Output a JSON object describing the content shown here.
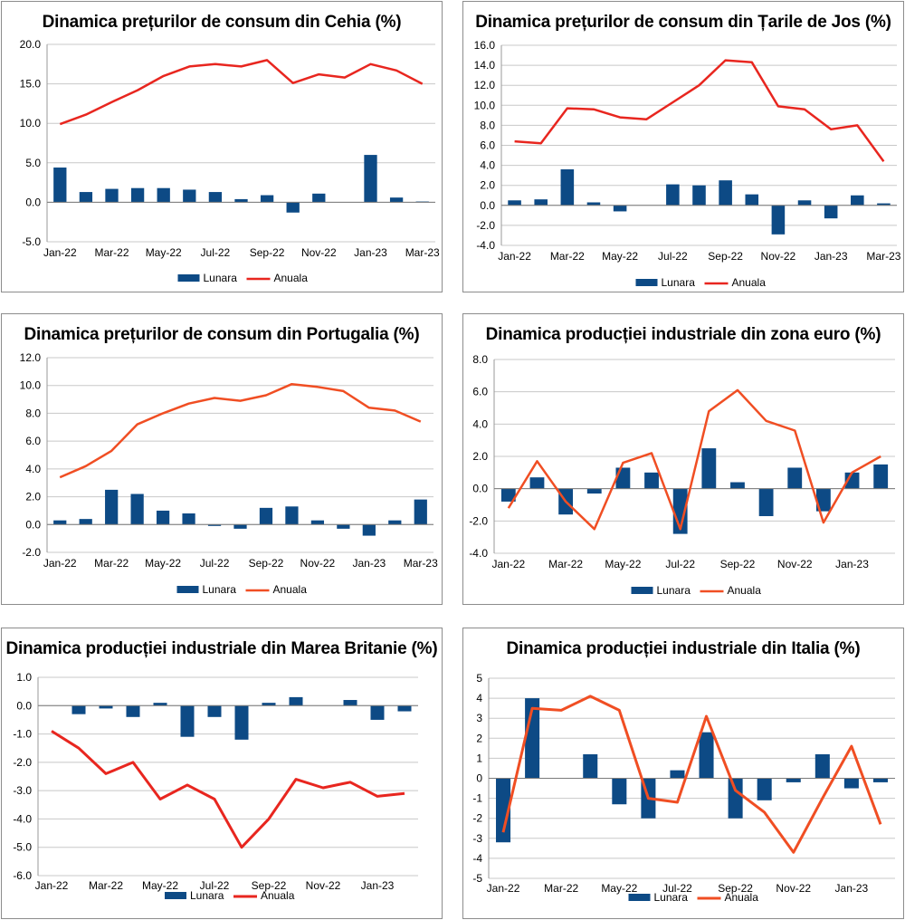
{
  "chart_data": [
    {
      "type": "bar+line",
      "title": "Dinamica prețurilor de consum din Cehia (%)",
      "categories": [
        "Jan-22",
        "Feb-22",
        "Mar-22",
        "Apr-22",
        "May-22",
        "Jun-22",
        "Jul-22",
        "Aug-22",
        "Sep-22",
        "Oct-22",
        "Nov-22",
        "Dec-22",
        "Jan-23",
        "Feb-23",
        "Mar-23"
      ],
      "x_tick_labels": [
        "Jan-22",
        "Mar-22",
        "May-22",
        "Jul-22",
        "Sep-22",
        "Nov-22",
        "Jan-23",
        "Mar-23"
      ],
      "y_ticks": [
        "20.0",
        "15.0",
        "10.0",
        "5.0",
        "0.0",
        "-5.0"
      ],
      "ylim": [
        -5,
        20
      ],
      "series": [
        {
          "name": "Lunara",
          "kind": "bar",
          "values": [
            4.4,
            1.3,
            1.7,
            1.8,
            1.8,
            1.6,
            1.3,
            0.4,
            0.9,
            -1.3,
            1.1,
            0.0,
            6.0,
            0.6,
            0.1
          ]
        },
        {
          "name": "Anuala",
          "kind": "line",
          "values": [
            9.9,
            11.1,
            12.7,
            14.2,
            16.0,
            17.2,
            17.5,
            17.2,
            18.0,
            15.1,
            16.2,
            15.8,
            17.5,
            16.7,
            15.0
          ]
        }
      ],
      "colors": {
        "bar": "#0d4a85",
        "line": "#e8261f"
      },
      "legend": [
        "Lunara",
        "Anuala"
      ]
    },
    {
      "type": "bar+line",
      "title": "Dinamica prețurilor de consum din Țarile de Jos (%)",
      "categories": [
        "Jan-22",
        "Feb-22",
        "Mar-22",
        "Apr-22",
        "May-22",
        "Jun-22",
        "Jul-22",
        "Aug-22",
        "Sep-22",
        "Oct-22",
        "Nov-22",
        "Dec-22",
        "Jan-23",
        "Feb-23",
        "Mar-23"
      ],
      "x_tick_labels": [
        "Jan-22",
        "Mar-22",
        "May-22",
        "Jul-22",
        "Sep-22",
        "Nov-22",
        "Jan-23",
        "Mar-23"
      ],
      "y_ticks": [
        "16.0",
        "14.0",
        "12.0",
        "10.0",
        "8.0",
        "6.0",
        "4.0",
        "2.0",
        "0.0",
        "-2.0",
        "-4.0"
      ],
      "ylim": [
        -4,
        16
      ],
      "series": [
        {
          "name": "Lunara",
          "kind": "bar",
          "values": [
            0.5,
            0.6,
            3.6,
            0.3,
            -0.6,
            0.0,
            2.1,
            2.0,
            2.5,
            1.1,
            -2.9,
            0.5,
            -1.3,
            1.0,
            0.2
          ]
        },
        {
          "name": "Anuala",
          "kind": "line",
          "values": [
            6.4,
            6.2,
            9.7,
            9.6,
            8.8,
            8.6,
            10.3,
            12.0,
            14.5,
            14.3,
            9.9,
            9.6,
            7.6,
            8.0,
            4.4
          ]
        }
      ],
      "colors": {
        "bar": "#0d4a85",
        "line": "#e8261f"
      },
      "legend": [
        "Lunara",
        "Anuala"
      ]
    },
    {
      "type": "bar+line",
      "title": "Dinamica prețurilor de consum din Portugalia (%)",
      "categories": [
        "Jan-22",
        "Feb-22",
        "Mar-22",
        "Apr-22",
        "May-22",
        "Jun-22",
        "Jul-22",
        "Aug-22",
        "Sep-22",
        "Oct-22",
        "Nov-22",
        "Dec-22",
        "Jan-23",
        "Feb-23",
        "Mar-23"
      ],
      "x_tick_labels": [
        "Jan-22",
        "Mar-22",
        "May-22",
        "Jul-22",
        "Sep-22",
        "Nov-22",
        "Jan-23",
        "Mar-23"
      ],
      "y_ticks": [
        "12.0",
        "10.0",
        "8.0",
        "6.0",
        "4.0",
        "2.0",
        "0.0",
        "-2.0"
      ],
      "ylim": [
        -2,
        12
      ],
      "series": [
        {
          "name": "Lunara",
          "kind": "bar",
          "values": [
            0.3,
            0.4,
            2.5,
            2.2,
            1.0,
            0.8,
            -0.1,
            -0.3,
            1.2,
            1.3,
            0.3,
            -0.3,
            -0.8,
            0.3,
            1.8
          ]
        },
        {
          "name": "Anuala",
          "kind": "line",
          "values": [
            3.4,
            4.2,
            5.3,
            7.2,
            8.0,
            8.7,
            9.1,
            8.9,
            9.3,
            10.1,
            9.9,
            9.6,
            8.4,
            8.2,
            7.4
          ]
        }
      ],
      "colors": {
        "bar": "#0d4a85",
        "line": "#f04e23"
      },
      "legend": [
        "Lunara",
        "Anuala"
      ]
    },
    {
      "type": "bar+line",
      "title": "Dinamica producției industriale din zona euro (%)",
      "categories": [
        "Jan-22",
        "Feb-22",
        "Mar-22",
        "Apr-22",
        "May-22",
        "Jun-22",
        "Jul-22",
        "Aug-22",
        "Sep-22",
        "Oct-22",
        "Nov-22",
        "Dec-22",
        "Jan-23",
        "Feb-23"
      ],
      "x_tick_labels": [
        "Jan-22",
        "Mar-22",
        "May-22",
        "Jul-22",
        "Sep-22",
        "Nov-22",
        "Jan-23"
      ],
      "y_ticks": [
        "8.0",
        "6.0",
        "4.0",
        "2.0",
        "0.0",
        "-2.0",
        "-4.0"
      ],
      "ylim": [
        -4,
        8
      ],
      "series": [
        {
          "name": "Lunara",
          "kind": "bar",
          "values": [
            -0.8,
            0.7,
            -1.6,
            -0.3,
            1.3,
            1.0,
            -2.8,
            2.5,
            0.4,
            -1.7,
            1.3,
            -1.4,
            1.0,
            1.5
          ]
        },
        {
          "name": "Anuala",
          "kind": "line",
          "values": [
            -1.2,
            1.7,
            -0.8,
            -2.5,
            1.6,
            2.2,
            -2.5,
            4.8,
            6.1,
            4.2,
            3.6,
            -2.1,
            1.0,
            2.0
          ]
        }
      ],
      "colors": {
        "bar": "#0d4a85",
        "line": "#f04e23"
      },
      "legend": [
        "Lunara",
        "Anuala"
      ]
    },
    {
      "type": "bar+line",
      "title": "Dinamica producției industriale din Marea Britanie (%)",
      "categories": [
        "Jan-22",
        "Feb-22",
        "Mar-22",
        "Apr-22",
        "May-22",
        "Jun-22",
        "Jul-22",
        "Aug-22",
        "Sep-22",
        "Oct-22",
        "Nov-22",
        "Dec-22",
        "Jan-23",
        "Feb-23"
      ],
      "x_tick_labels": [
        "Jan-22",
        "Mar-22",
        "May-22",
        "Jul-22",
        "Sep-22",
        "Nov-22",
        "Jan-23"
      ],
      "y_ticks": [
        "1.0",
        "0.0",
        "-1.0",
        "-2.0",
        "-3.0",
        "-4.0",
        "-5.0",
        "-6.0"
      ],
      "ylim": [
        -6,
        1
      ],
      "series": [
        {
          "name": "Lunara",
          "kind": "bar",
          "values": [
            0.0,
            -0.3,
            -0.1,
            -0.4,
            0.1,
            -1.1,
            -0.4,
            -1.2,
            0.1,
            0.3,
            0.0,
            0.2,
            -0.5,
            -0.2
          ]
        },
        {
          "name": "Anuala",
          "kind": "line",
          "values": [
            -0.9,
            -1.5,
            -2.4,
            -2.0,
            -3.3,
            -2.8,
            -3.3,
            -5.0,
            -4.0,
            -2.6,
            -2.9,
            -2.7,
            -3.2,
            -3.1
          ]
        }
      ],
      "colors": {
        "bar": "#0d4a85",
        "line": "#e8261f"
      },
      "legend": [
        "Lunara",
        "Anuala"
      ]
    },
    {
      "type": "bar+line",
      "title": "Dinamica producției industriale din Italia (%)",
      "categories": [
        "Jan-22",
        "Feb-22",
        "Mar-22",
        "Apr-22",
        "May-22",
        "Jun-22",
        "Jul-22",
        "Aug-22",
        "Sep-22",
        "Oct-22",
        "Nov-22",
        "Dec-22",
        "Jan-23",
        "Feb-23"
      ],
      "x_tick_labels": [
        "Jan-22",
        "Mar-22",
        "May-22",
        "Jul-22",
        "Sep-22",
        "Nov-22",
        "Jan-23"
      ],
      "y_ticks": [
        "5",
        "4",
        "3",
        "2",
        "1",
        "0",
        "-1",
        "-2",
        "-3",
        "-4",
        "-5"
      ],
      "ylim": [
        -5,
        5
      ],
      "series": [
        {
          "name": "Lunara",
          "kind": "bar",
          "values": [
            -3.2,
            4.0,
            0.0,
            1.2,
            -1.3,
            -2.0,
            0.4,
            2.3,
            -2.0,
            -1.1,
            -0.2,
            1.2,
            -0.5,
            -0.2
          ]
        },
        {
          "name": "Anuala",
          "kind": "line",
          "values": [
            -2.7,
            3.5,
            3.4,
            4.1,
            3.4,
            -1.0,
            -1.2,
            3.1,
            -0.6,
            -1.7,
            -3.7,
            -1.0,
            1.6,
            -2.3
          ]
        }
      ],
      "colors": {
        "bar": "#0d4a85",
        "line": "#f04e23"
      },
      "legend": [
        "Lunara",
        "Anuala"
      ]
    }
  ]
}
